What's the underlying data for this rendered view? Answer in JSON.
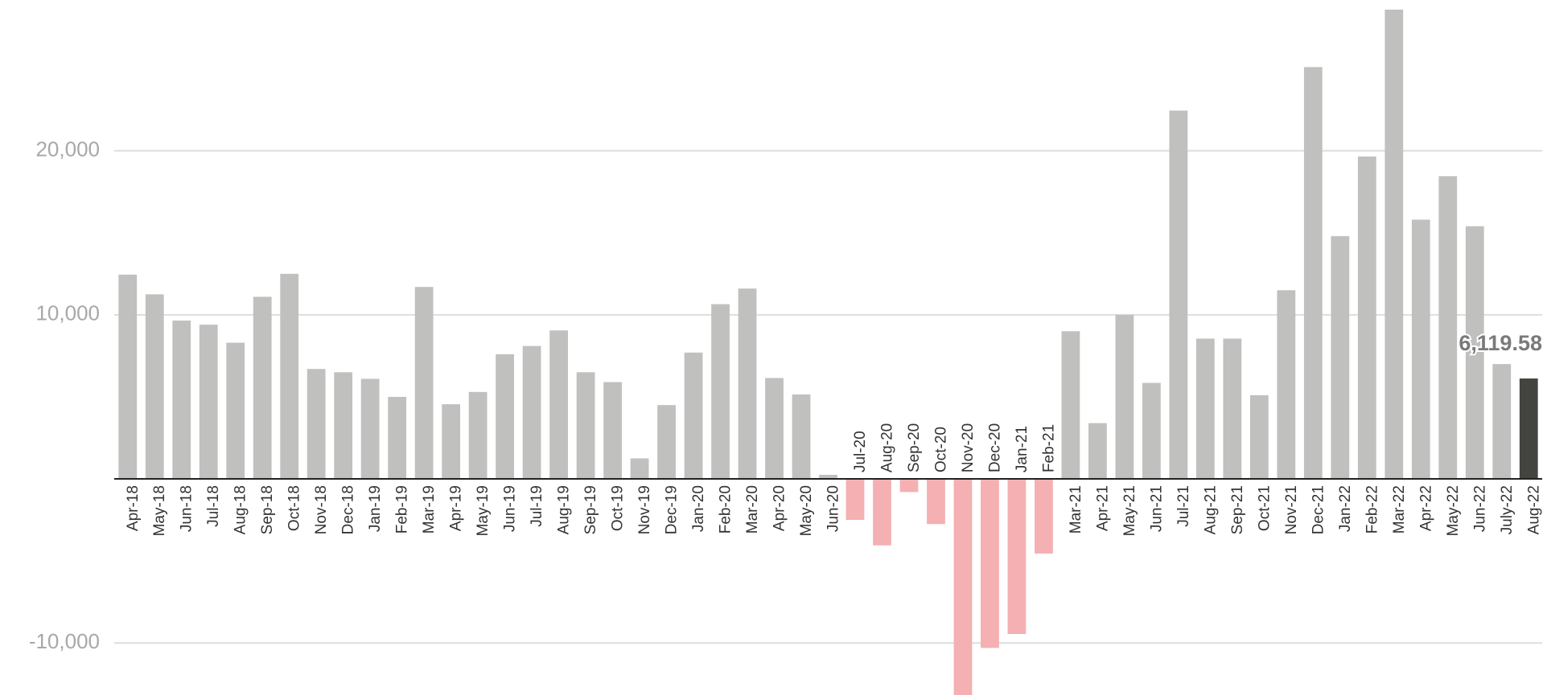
{
  "chart_data": {
    "type": "bar",
    "categories": [
      "Apr-18",
      "May-18",
      "Jun-18",
      "Jul-18",
      "Aug-18",
      "Sep-18",
      "Oct-18",
      "Nov-18",
      "Dec-18",
      "Jan-19",
      "Feb-19",
      "Mar-19",
      "Apr-19",
      "May-19",
      "Jun-19",
      "Jul-19",
      "Aug-19",
      "Sep-19",
      "Oct-19",
      "Nov-19",
      "Dec-19",
      "Jan-20",
      "Feb-20",
      "Mar-20",
      "Apr-20",
      "May-20",
      "Jun-20",
      "Jul-20",
      "Aug-20",
      "Sep-20",
      "Oct-20",
      "Nov-20",
      "Dec-20",
      "Jan-21",
      "Feb-21",
      "Mar-21",
      "Apr-21",
      "May-21",
      "Jun-21",
      "Jul-21",
      "Aug-21",
      "Sep-21",
      "Oct-21",
      "Nov-21",
      "Dec-21",
      "Jan-22",
      "Feb-22",
      "Mar-22",
      "Apr-22",
      "May-22",
      "Jun-22",
      "July-22",
      "Aug-22"
    ],
    "values": [
      12450,
      11250,
      9650,
      9400,
      8300,
      11100,
      12500,
      6700,
      6500,
      6100,
      5000,
      11700,
      4550,
      5300,
      7600,
      8100,
      9050,
      6500,
      5900,
      1250,
      4500,
      7700,
      10650,
      11600,
      6150,
      5150,
      250,
      -2500,
      -4050,
      -800,
      -2750,
      -14000,
      -10300,
      -9450,
      -4550,
      9000,
      3400,
      10000,
      5850,
      22450,
      8550,
      8550,
      5100,
      11500,
      25100,
      14800,
      19650,
      28600,
      15800,
      18450,
      15400,
      7000,
      6119.58
    ],
    "value_labels": [
      null,
      null,
      null,
      null,
      null,
      null,
      null,
      null,
      null,
      null,
      null,
      null,
      null,
      null,
      null,
      null,
      null,
      null,
      null,
      null,
      null,
      null,
      null,
      null,
      null,
      null,
      null,
      null,
      null,
      null,
      null,
      null,
      null,
      null,
      null,
      null,
      null,
      null,
      null,
      null,
      null,
      null,
      null,
      null,
      null,
      null,
      null,
      null,
      null,
      null,
      null,
      null,
      "6,119.58"
    ],
    "color": "#c0c0bf",
    "negative_color": "#f4b0b2",
    "highlight_color": "#43443f",
    "ylim": [
      -13170,
      28600
    ],
    "yticks": [
      {
        "value": -10000,
        "label": "-10,000"
      },
      {
        "value": 10000,
        "label": "10,000"
      },
      {
        "value": 20000,
        "label": "20,000"
      }
    ],
    "grid": true
  }
}
